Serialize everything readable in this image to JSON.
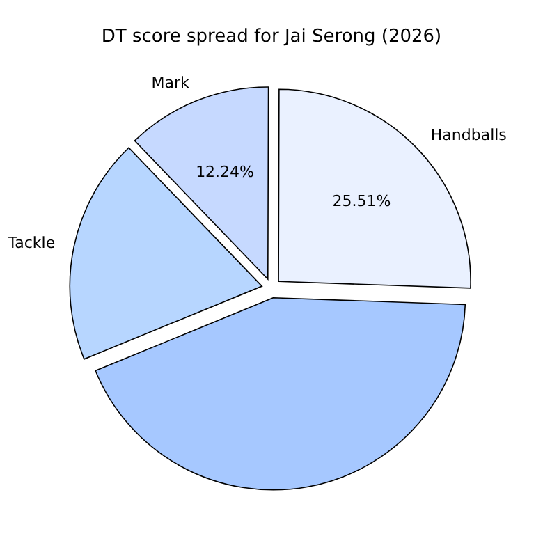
{
  "chart_data": {
    "type": "pie",
    "title": "DT score spread for Jai Serong (2026)",
    "categories": [
      "Handballs",
      "Mark",
      "Tackle",
      null
    ],
    "values": [
      25.51,
      12.24,
      19,
      43.25
    ],
    "colors": [
      "#eaf1ff",
      "#c6d9ff",
      "#b7d6ff",
      "#a6c8ff"
    ],
    "value_labels": [
      "25.51%",
      "12.24%",
      null,
      null
    ],
    "legend": false
  }
}
